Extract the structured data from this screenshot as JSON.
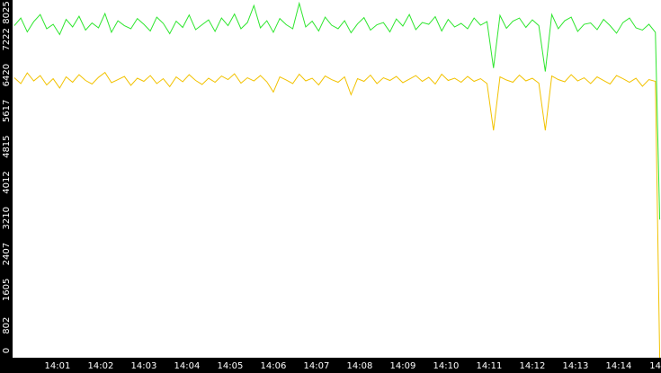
{
  "chart_data": {
    "type": "line",
    "x": [
      0,
      0.15,
      0.3,
      0.45,
      0.6,
      0.75,
      0.9,
      1.05,
      1.2,
      1.35,
      1.5,
      1.65,
      1.8,
      1.95,
      2.1,
      2.25,
      2.4,
      2.55,
      2.7,
      2.85,
      3,
      3.15,
      3.3,
      3.45,
      3.6,
      3.75,
      3.9,
      4.05,
      4.2,
      4.35,
      4.5,
      4.65,
      4.8,
      4.95,
      5.1,
      5.25,
      5.4,
      5.55,
      5.7,
      5.85,
      6,
      6.15,
      6.3,
      6.45,
      6.6,
      6.75,
      6.9,
      7.05,
      7.2,
      7.35,
      7.5,
      7.65,
      7.8,
      7.95,
      8.1,
      8.25,
      8.4,
      8.55,
      8.7,
      8.85,
      9,
      9.15,
      9.3,
      9.45,
      9.6,
      9.75,
      9.9,
      10.05,
      10.2,
      10.35,
      10.5,
      10.65,
      10.8,
      10.95,
      11.1,
      11.25,
      11.4,
      11.55,
      11.7,
      11.85,
      12,
      12.15,
      12.3,
      12.45,
      12.6,
      12.75,
      12.9,
      13.05,
      13.2,
      13.35,
      13.5,
      13.65,
      13.8,
      13.95,
      14.1,
      14.25,
      14.4,
      14.55,
      14.7,
      14.85,
      14.95
    ],
    "series": [
      {
        "color": "#2ee62e",
        "values": [
          7450,
          7620,
          7310,
          7540,
          7700,
          7380,
          7480,
          7250,
          7590,
          7420,
          7660,
          7350,
          7510,
          7400,
          7720,
          7300,
          7560,
          7450,
          7380,
          7610,
          7480,
          7330,
          7640,
          7500,
          7270,
          7550,
          7410,
          7690,
          7360,
          7470,
          7580,
          7320,
          7620,
          7450,
          7710,
          7380,
          7520,
          7900,
          7400,
          7560,
          7300,
          7610,
          7470,
          7380,
          7950,
          7420,
          7550,
          7330,
          7640,
          7460,
          7380,
          7560,
          7290,
          7490,
          7630,
          7350,
          7470,
          7520,
          7310,
          7600,
          7440,
          7700,
          7360,
          7520,
          7480,
          7650,
          7330,
          7590,
          7420,
          7500,
          7380,
          7620,
          7460,
          7540,
          6500,
          7680,
          7390,
          7550,
          7620,
          7410,
          7580,
          7450,
          6420,
          7700,
          7380,
          7560,
          7640,
          7320,
          7480,
          7510,
          7360,
          7590,
          7450,
          7280,
          7520,
          7620,
          7400,
          7350,
          7480,
          7300,
          3100
        ]
      },
      {
        "color": "#f2c200",
        "values": [
          6280,
          6150,
          6390,
          6210,
          6330,
          6120,
          6260,
          6050,
          6300,
          6180,
          6350,
          6220,
          6140,
          6290,
          6400,
          6170,
          6240,
          6310,
          6110,
          6270,
          6200,
          6330,
          6150,
          6260,
          6080,
          6300,
          6190,
          6350,
          6220,
          6130,
          6270,
          6180,
          6320,
          6240,
          6370,
          6160,
          6280,
          6210,
          6330,
          6190,
          5960,
          6300,
          6230,
          6150,
          6360,
          6210,
          6270,
          6120,
          6320,
          6240,
          6180,
          6300,
          5900,
          6260,
          6200,
          6340,
          6150,
          6280,
          6220,
          6310,
          6170,
          6250,
          6330,
          6200,
          6290,
          6140,
          6360,
          6220,
          6270,
          6180,
          6310,
          6200,
          6260,
          6150,
          5100,
          6300,
          6230,
          6180,
          6340,
          6210,
          6270,
          6160,
          5100,
          6320,
          6240,
          6190,
          6350,
          6210,
          6280,
          6150,
          6300,
          6220,
          6140,
          6330,
          6260,
          6180,
          6270,
          6090,
          6240,
          6200,
          0
        ]
      }
    ],
    "xlim": [
      -0.04,
      14.98
    ],
    "xticks": [
      {
        "value": 1,
        "label": "14:01"
      },
      {
        "value": 2,
        "label": "14:02"
      },
      {
        "value": 3,
        "label": "14:03"
      },
      {
        "value": 4,
        "label": "14:04"
      },
      {
        "value": 5,
        "label": "14:05"
      },
      {
        "value": 6,
        "label": "14:06"
      },
      {
        "value": 7,
        "label": "14:07"
      },
      {
        "value": 8,
        "label": "14:08"
      },
      {
        "value": 9,
        "label": "14:09"
      },
      {
        "value": 10,
        "label": "14:10"
      },
      {
        "value": 11,
        "label": "14:11"
      },
      {
        "value": 12,
        "label": "14:12"
      },
      {
        "value": 13,
        "label": "14:13"
      },
      {
        "value": 14,
        "label": "14:14"
      },
      {
        "value": 15,
        "label": "14"
      }
    ],
    "ylim": [
      0,
      8025
    ],
    "yticks": [
      0,
      802,
      1605,
      2407,
      3210,
      4012,
      4815,
      5617,
      6420,
      7222,
      8025
    ]
  }
}
